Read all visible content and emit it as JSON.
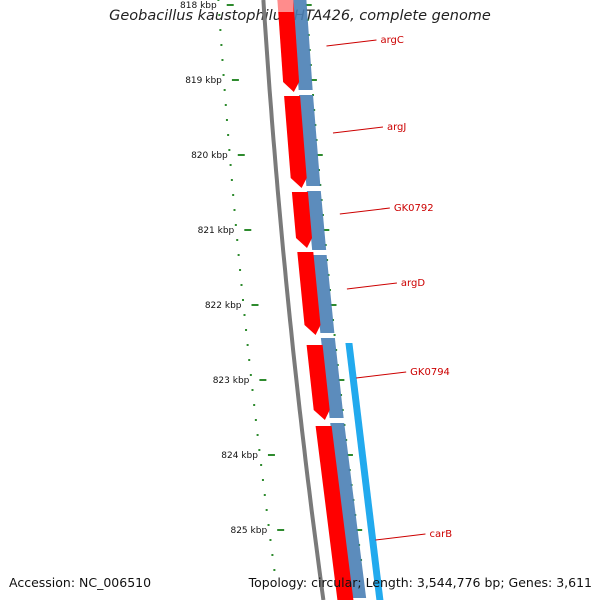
{
  "title": "Geobacillus kaustophilus HTA426, complete genome",
  "footer": {
    "accession": "Accession: NC_006510",
    "summary": "Topology: circular; Length: 3,544,776 bp; Genes: 3,611"
  },
  "colors": {
    "backbone": "#7a7a7a",
    "cds": "#ff0000",
    "gene_band": "#4a7fb5",
    "gene_band_highlight": "#22aaee",
    "tick": "#2e8b2e",
    "label": "#cc0000"
  },
  "kbp_ticks": [
    {
      "kbp": 818,
      "label": "818 kbp"
    },
    {
      "kbp": 819,
      "label": "819 kbp"
    },
    {
      "kbp": 820,
      "label": "820 kbp"
    },
    {
      "kbp": 821,
      "label": "821 kbp"
    },
    {
      "kbp": 822,
      "label": "822 kbp"
    },
    {
      "kbp": 823,
      "label": "823 kbp"
    },
    {
      "kbp": 824,
      "label": "824 kbp"
    },
    {
      "kbp": 825,
      "label": "825 kbp"
    }
  ],
  "genes": [
    {
      "name": "argC"
    },
    {
      "name": "argJ"
    },
    {
      "name": "GK0792"
    },
    {
      "name": "argD"
    },
    {
      "name": "GK0794"
    },
    {
      "name": "carB"
    }
  ]
}
